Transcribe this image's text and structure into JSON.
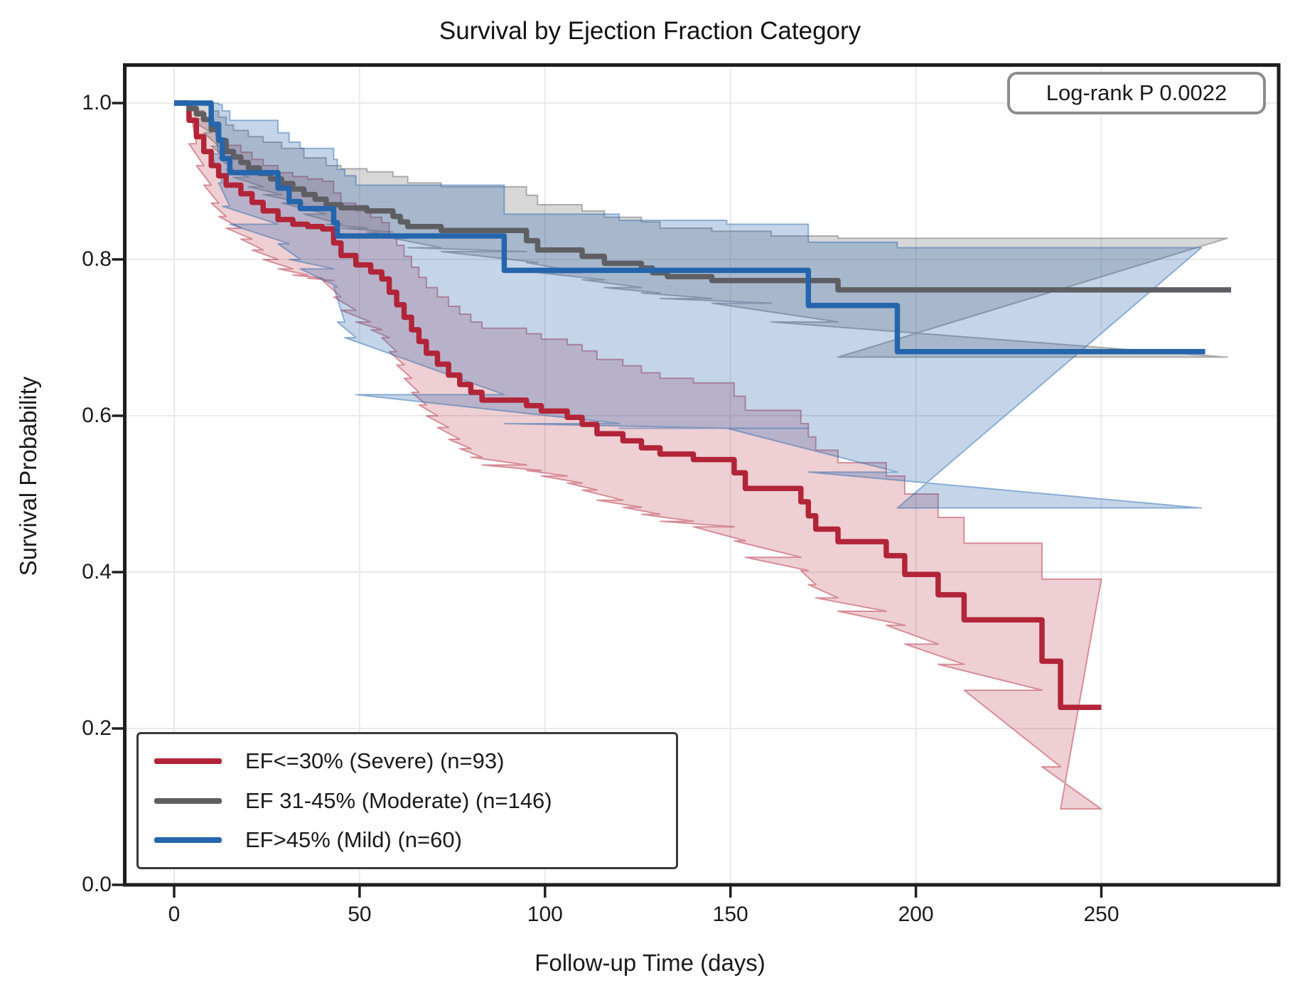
{
  "chart_data": {
    "type": "line",
    "subtype": "kaplan-meier-step-with-ci",
    "title": "Survival by Ejection Fraction Category",
    "xlabel": "Follow-up Time (days)",
    "ylabel": "Survival Probability",
    "annotation": "Log-rank P 0.0022",
    "grid": true,
    "legend_position": "lower left",
    "xlim": [
      -13,
      298
    ],
    "ylim": [
      0.0,
      1.05
    ],
    "xticks": [
      0,
      50,
      100,
      150,
      200,
      250
    ],
    "ytick_labels": [
      "0.0",
      "0.2",
      "0.4",
      "0.6",
      "0.8",
      "1.0"
    ],
    "yticks": [
      0.0,
      0.2,
      0.4,
      0.6,
      0.8,
      1.0
    ],
    "series": [
      {
        "name": "EF<=30% (Severe) (n=93)",
        "color": "#B22438",
        "fill_opacity": 0.22,
        "steps": [
          [
            0,
            1.0
          ],
          [
            4,
            0.978
          ],
          [
            6,
            0.957
          ],
          [
            8,
            0.938
          ],
          [
            10,
            0.92
          ],
          [
            12,
            0.907
          ],
          [
            14,
            0.895
          ],
          [
            18,
            0.884
          ],
          [
            21,
            0.873
          ],
          [
            24,
            0.862
          ],
          [
            28,
            0.851
          ],
          [
            32,
            0.845
          ],
          [
            36,
            0.842
          ],
          [
            40,
            0.839
          ],
          [
            43,
            0.821
          ],
          [
            45,
            0.805
          ],
          [
            49,
            0.793
          ],
          [
            53,
            0.784
          ],
          [
            56,
            0.775
          ],
          [
            58,
            0.758
          ],
          [
            60,
            0.742
          ],
          [
            62,
            0.726
          ],
          [
            64,
            0.71
          ],
          [
            66,
            0.695
          ],
          [
            68,
            0.68
          ],
          [
            71,
            0.666
          ],
          [
            74,
            0.652
          ],
          [
            77,
            0.64
          ],
          [
            80,
            0.63
          ],
          [
            83,
            0.62
          ],
          [
            95,
            0.613
          ],
          [
            99,
            0.606
          ],
          [
            106,
            0.598
          ],
          [
            110,
            0.589
          ],
          [
            114,
            0.577
          ],
          [
            121,
            0.568
          ],
          [
            126,
            0.559
          ],
          [
            131,
            0.551
          ],
          [
            140,
            0.544
          ],
          [
            151,
            0.527
          ],
          [
            154,
            0.507
          ],
          [
            169,
            0.49
          ],
          [
            171,
            0.472
          ],
          [
            173,
            0.455
          ],
          [
            179,
            0.439
          ],
          [
            192,
            0.421
          ],
          [
            197,
            0.397
          ],
          [
            206,
            0.371
          ],
          [
            213,
            0.339
          ],
          [
            234,
            0.286
          ],
          [
            239,
            0.227
          ],
          [
            250,
            0.227
          ]
        ],
        "ci": [
          [
            4,
            0.948,
            0.998
          ],
          [
            6,
            0.92,
            0.99
          ],
          [
            8,
            0.895,
            0.978
          ],
          [
            10,
            0.872,
            0.965
          ],
          [
            12,
            0.855,
            0.955
          ],
          [
            14,
            0.84,
            0.946
          ],
          [
            18,
            0.826,
            0.937
          ],
          [
            21,
            0.812,
            0.928
          ],
          [
            24,
            0.8,
            0.92
          ],
          [
            28,
            0.788,
            0.911
          ],
          [
            32,
            0.78,
            0.906
          ],
          [
            36,
            0.776,
            0.903
          ],
          [
            40,
            0.773,
            0.9
          ],
          [
            43,
            0.752,
            0.885
          ],
          [
            45,
            0.735,
            0.872
          ],
          [
            49,
            0.72,
            0.862
          ],
          [
            53,
            0.71,
            0.854
          ],
          [
            56,
            0.7,
            0.847
          ],
          [
            58,
            0.682,
            0.832
          ],
          [
            60,
            0.665,
            0.818
          ],
          [
            62,
            0.648,
            0.804
          ],
          [
            64,
            0.63,
            0.79
          ],
          [
            66,
            0.614,
            0.777
          ],
          [
            68,
            0.6,
            0.764
          ],
          [
            71,
            0.585,
            0.752
          ],
          [
            74,
            0.57,
            0.74
          ],
          [
            77,
            0.558,
            0.73
          ],
          [
            80,
            0.547,
            0.72
          ],
          [
            83,
            0.537,
            0.712
          ],
          [
            95,
            0.53,
            0.705
          ],
          [
            99,
            0.523,
            0.698
          ],
          [
            106,
            0.514,
            0.691
          ],
          [
            110,
            0.505,
            0.683
          ],
          [
            114,
            0.492,
            0.672
          ],
          [
            121,
            0.483,
            0.664
          ],
          [
            126,
            0.474,
            0.655
          ],
          [
            131,
            0.465,
            0.648
          ],
          [
            140,
            0.458,
            0.642
          ],
          [
            151,
            0.44,
            0.625
          ],
          [
            154,
            0.419,
            0.607
          ],
          [
            169,
            0.402,
            0.59
          ],
          [
            171,
            0.384,
            0.573
          ],
          [
            173,
            0.367,
            0.556
          ],
          [
            179,
            0.35,
            0.54
          ],
          [
            192,
            0.332,
            0.523
          ],
          [
            197,
            0.308,
            0.5
          ],
          [
            206,
            0.282,
            0.47
          ],
          [
            213,
            0.249,
            0.437
          ],
          [
            234,
            0.151,
            0.391
          ],
          [
            239,
            0.097,
            0.391
          ],
          [
            250,
            0.097,
            0.391
          ]
        ]
      },
      {
        "name": "EF 31-45% (Moderate) (n=146)",
        "color": "#5F5F63",
        "fill_opacity": 0.25,
        "steps": [
          [
            0,
            1.0
          ],
          [
            4,
            0.993
          ],
          [
            6,
            0.986
          ],
          [
            8,
            0.979
          ],
          [
            10,
            0.966
          ],
          [
            12,
            0.952
          ],
          [
            14,
            0.938
          ],
          [
            16,
            0.931
          ],
          [
            18,
            0.924
          ],
          [
            20,
            0.917
          ],
          [
            23,
            0.91
          ],
          [
            26,
            0.903
          ],
          [
            29,
            0.897
          ],
          [
            32,
            0.89
          ],
          [
            35,
            0.883
          ],
          [
            38,
            0.877
          ],
          [
            41,
            0.87
          ],
          [
            45,
            0.866
          ],
          [
            52,
            0.862
          ],
          [
            59,
            0.855
          ],
          [
            61,
            0.848
          ],
          [
            63,
            0.842
          ],
          [
            72,
            0.837
          ],
          [
            95,
            0.824
          ],
          [
            98,
            0.812
          ],
          [
            110,
            0.804
          ],
          [
            116,
            0.795
          ],
          [
            126,
            0.789
          ],
          [
            129,
            0.783
          ],
          [
            133,
            0.778
          ],
          [
            145,
            0.773
          ],
          [
            179,
            0.761
          ],
          [
            285,
            0.761
          ]
        ],
        "ci": [
          [
            4,
            0.98,
            1.0
          ],
          [
            8,
            0.962,
            0.997
          ],
          [
            10,
            0.945,
            0.99
          ],
          [
            12,
            0.93,
            0.982
          ],
          [
            14,
            0.915,
            0.972
          ],
          [
            16,
            0.905,
            0.965
          ],
          [
            20,
            0.893,
            0.957
          ],
          [
            24,
            0.883,
            0.95
          ],
          [
            29,
            0.872,
            0.942
          ],
          [
            35,
            0.858,
            0.93
          ],
          [
            41,
            0.845,
            0.92
          ],
          [
            45,
            0.84,
            0.916
          ],
          [
            52,
            0.835,
            0.912
          ],
          [
            59,
            0.827,
            0.906
          ],
          [
            63,
            0.815,
            0.898
          ],
          [
            72,
            0.81,
            0.893
          ],
          [
            95,
            0.796,
            0.882
          ],
          [
            98,
            0.783,
            0.87
          ],
          [
            110,
            0.774,
            0.862
          ],
          [
            116,
            0.764,
            0.854
          ],
          [
            126,
            0.757,
            0.848
          ],
          [
            131,
            0.75,
            0.84
          ],
          [
            145,
            0.744,
            0.836
          ],
          [
            161,
            0.72,
            0.83
          ],
          [
            179,
            0.675,
            0.827
          ],
          [
            284,
            0.675,
            0.827
          ]
        ]
      },
      {
        "name": "EF>45% (Mild) (n=60)",
        "color": "#2565AC",
        "fill_opacity": 0.27,
        "steps": [
          [
            0,
            1.0
          ],
          [
            10,
            0.973
          ],
          [
            12,
            0.953
          ],
          [
            13,
            0.929
          ],
          [
            15,
            0.911
          ],
          [
            28,
            0.891
          ],
          [
            31,
            0.874
          ],
          [
            34,
            0.865
          ],
          [
            43,
            0.847
          ],
          [
            44,
            0.83
          ],
          [
            89,
            0.786
          ],
          [
            171,
            0.741
          ],
          [
            195,
            0.682
          ],
          [
            278,
            0.682
          ]
        ],
        "ci": [
          [
            10,
            0.935,
            1.0
          ],
          [
            12,
            0.898,
            0.998
          ],
          [
            13,
            0.868,
            0.99
          ],
          [
            15,
            0.845,
            0.978
          ],
          [
            28,
            0.82,
            0.962
          ],
          [
            31,
            0.8,
            0.95
          ],
          [
            34,
            0.788,
            0.942
          ],
          [
            43,
            0.765,
            0.928
          ],
          [
            44,
            0.72,
            0.915
          ],
          [
            46,
            0.7,
            0.907
          ],
          [
            49,
            0.627,
            0.895
          ],
          [
            89,
            0.59,
            0.858
          ],
          [
            120,
            0.584,
            0.85
          ],
          [
            149,
            0.584,
            0.845
          ],
          [
            171,
            0.528,
            0.822
          ],
          [
            195,
            0.482,
            0.815
          ],
          [
            277,
            0.482,
            0.815
          ]
        ]
      }
    ]
  },
  "style": {
    "grid_color": "#e9e9e9",
    "spine_color": "#1f1f1f",
    "tick_color": "#1f1f1f"
  }
}
